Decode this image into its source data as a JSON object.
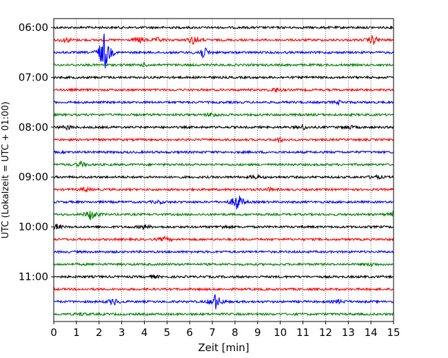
{
  "chart_data": {
    "type": "line",
    "xlabel": "Zeit  [min]",
    "ylabel": "UTC (Lokalzeit = UTC + 01:00)",
    "xlim": [
      0,
      15
    ],
    "x_ticks": [
      0,
      1,
      2,
      3,
      4,
      5,
      6,
      7,
      8,
      9,
      10,
      11,
      12,
      13,
      14,
      15
    ],
    "y_tick_labels": [
      "06:00",
      "07:00",
      "08:00",
      "09:00",
      "10:00",
      "11:00"
    ],
    "grid_x": "dotted",
    "trace_interval_minutes": 15,
    "color_cycle": [
      "#000000",
      "#ff0000",
      "#0000ff",
      "#008000"
    ],
    "series": [
      {
        "start": "06:00",
        "events": []
      },
      {
        "start": "06:15",
        "events": [
          {
            "t": 0.55,
            "amp": 0.4
          },
          {
            "t": 3.8,
            "amp": 0.5
          },
          {
            "t": 4.6,
            "amp": 0.3
          },
          {
            "t": 6.2,
            "amp": 0.7
          },
          {
            "t": 14.1,
            "amp": 0.7
          }
        ]
      },
      {
        "start": "06:30",
        "events": [
          {
            "t": 2.2,
            "amp": 1.0
          },
          {
            "t": 2.25,
            "amp": 2.2
          },
          {
            "t": 6.6,
            "amp": 0.9
          }
        ]
      },
      {
        "start": "06:45",
        "events": [
          {
            "t": 4.0,
            "amp": 0.2
          }
        ]
      },
      {
        "start": "07:00",
        "events": []
      },
      {
        "start": "07:15",
        "events": [
          {
            "t": 9.8,
            "amp": 0.3
          }
        ]
      },
      {
        "start": "07:30",
        "events": [
          {
            "t": 12.6,
            "amp": 0.2
          }
        ]
      },
      {
        "start": "07:45",
        "events": [
          {
            "t": 7.0,
            "amp": 0.3
          }
        ]
      },
      {
        "start": "08:00",
        "events": [
          {
            "t": 0.6,
            "amp": 0.3
          },
          {
            "t": 11.0,
            "amp": 0.3
          },
          {
            "t": 13.0,
            "amp": 0.3
          }
        ]
      },
      {
        "start": "08:15",
        "events": [
          {
            "t": 10.0,
            "amp": 0.3
          }
        ]
      },
      {
        "start": "08:30",
        "events": []
      },
      {
        "start": "08:45",
        "events": [
          {
            "t": 1.2,
            "amp": 0.4
          }
        ]
      },
      {
        "start": "09:00",
        "events": [
          {
            "t": 8.9,
            "amp": 0.3
          },
          {
            "t": 14.2,
            "amp": 0.3
          }
        ]
      },
      {
        "start": "09:15",
        "events": [
          {
            "t": 1.4,
            "amp": 0.3
          },
          {
            "t": 9.5,
            "amp": 0.2
          }
        ]
      },
      {
        "start": "09:30",
        "events": [
          {
            "t": 4.6,
            "amp": 0.2
          },
          {
            "t": 8.1,
            "amp": 1.4
          }
        ]
      },
      {
        "start": "09:45",
        "events": [
          {
            "t": 1.65,
            "amp": 0.9
          },
          {
            "t": 15.0,
            "amp": 0.4
          }
        ]
      },
      {
        "start": "10:00",
        "events": [
          {
            "t": 0.1,
            "amp": 0.4
          },
          {
            "t": 4.0,
            "amp": 0.3
          },
          {
            "t": 7.5,
            "amp": 0.2
          }
        ]
      },
      {
        "start": "10:15",
        "events": [
          {
            "t": 4.9,
            "amp": 0.3
          }
        ]
      },
      {
        "start": "10:30",
        "events": []
      },
      {
        "start": "10:45",
        "events": [
          {
            "t": 14.0,
            "amp": 0.2
          }
        ]
      },
      {
        "start": "11:00",
        "events": [
          {
            "t": 4.4,
            "amp": 0.2
          }
        ]
      },
      {
        "start": "11:15",
        "events": []
      },
      {
        "start": "11:30",
        "events": [
          {
            "t": 2.65,
            "amp": 0.5
          },
          {
            "t": 7.15,
            "amp": 1.2
          },
          {
            "t": 12.6,
            "amp": 0.3
          }
        ]
      },
      {
        "start": "11:45",
        "events": [
          {
            "t": 1.2,
            "amp": 0.2
          }
        ]
      }
    ]
  }
}
